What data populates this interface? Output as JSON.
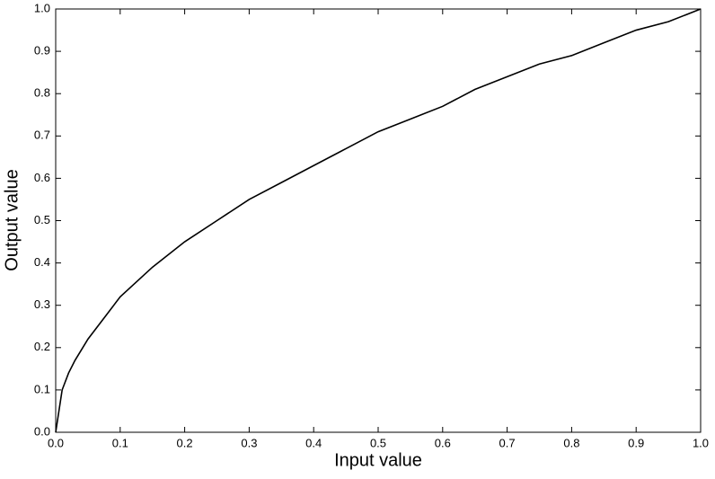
{
  "chart_data": {
    "type": "line",
    "x_label": "Input value",
    "y_label": "Output value",
    "x": [
      0,
      0.01,
      0.02,
      0.03,
      0.05,
      0.075,
      0.1,
      0.15,
      0.2,
      0.25,
      0.3,
      0.35,
      0.4,
      0.45,
      0.5,
      0.55,
      0.6,
      0.65,
      0.7,
      0.75,
      0.8,
      0.85,
      0.9,
      0.95,
      1
    ],
    "series": [
      {
        "color": "#000000",
        "values": [
          0,
          0.1,
          0.14,
          0.17,
          0.22,
          0.27,
          0.32,
          0.39,
          0.45,
          0.5,
          0.55,
          0.59,
          0.63,
          0.67,
          0.71,
          0.74,
          0.77,
          0.81,
          0.84,
          0.87,
          0.89,
          0.92,
          0.95,
          0.97,
          1
        ]
      }
    ],
    "xlim": [
      0,
      1
    ],
    "ylim": [
      0,
      1
    ],
    "xticks": [
      {
        "value": 0,
        "label": "0.0"
      },
      0.1,
      0.2,
      0.3,
      0.4,
      0.5,
      0.6,
      0.7,
      0.8,
      0.9,
      {
        "value": 1,
        "label": "1.0"
      }
    ],
    "yticks": [
      {
        "value": 0,
        "label": "0.0"
      },
      0.1,
      0.2,
      0.3,
      0.4,
      0.5,
      0.6,
      0.7,
      0.8,
      0.9,
      {
        "value": 1,
        "label": "1.0"
      }
    ]
  }
}
